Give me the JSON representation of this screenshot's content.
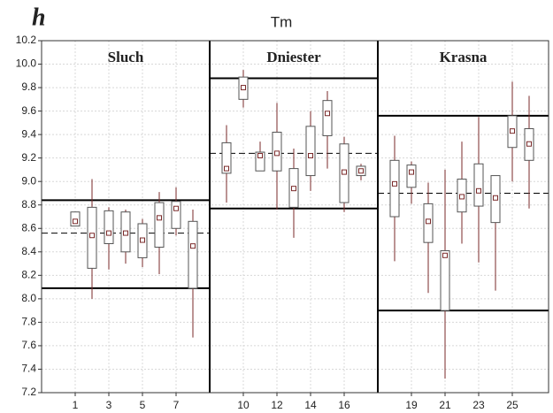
{
  "chart_data": {
    "type": "box",
    "panel_label": "h",
    "title": "Tm",
    "ylim": [
      7.2,
      10.2
    ],
    "yticks": [
      7.2,
      7.4,
      7.6,
      7.8,
      {
        "value": 8.0,
        "label": "8.0"
      },
      8.2,
      8.4,
      8.6,
      8.8,
      {
        "value": 9.0,
        "label": "9.0"
      },
      9.2,
      9.4,
      9.6,
      9.8,
      {
        "value": 10.0,
        "label": "10.0"
      },
      10.2
    ],
    "grid": true,
    "box_color": "#555555",
    "whisker_color": "#7a2a2a",
    "marker_color": "#7a2a2a",
    "groups": [
      {
        "name": "Sluch",
        "mean": 8.56,
        "upper": 8.84,
        "lower": 8.09,
        "categories": [
          "1",
          null,
          "3",
          null,
          "5",
          null,
          "7",
          null
        ],
        "whisker_low": [
          8.62,
          8.0,
          8.25,
          8.3,
          8.27,
          8.21,
          8.54,
          7.67
        ],
        "q1": [
          8.62,
          8.26,
          8.47,
          8.4,
          8.35,
          8.44,
          8.6,
          8.09
        ],
        "median": [
          8.66,
          8.54,
          8.56,
          8.56,
          8.5,
          8.69,
          8.77,
          8.45
        ],
        "q3": [
          8.74,
          8.78,
          8.75,
          8.74,
          8.64,
          8.82,
          8.83,
          8.66
        ],
        "whisker_high": [
          8.74,
          9.02,
          8.78,
          8.76,
          8.68,
          8.91,
          8.95,
          8.76
        ]
      },
      {
        "name": "Dniester",
        "mean": 9.24,
        "upper": 9.88,
        "lower": 8.77,
        "categories": [
          null,
          "10",
          null,
          "12",
          null,
          "14",
          null,
          "16",
          null
        ],
        "whisker_low": [
          8.82,
          9.63,
          9.09,
          8.76,
          8.52,
          8.92,
          9.11,
          8.74,
          9.01
        ],
        "q1": [
          9.07,
          9.7,
          9.09,
          9.09,
          8.78,
          9.05,
          9.39,
          8.82,
          9.05
        ],
        "median": [
          9.11,
          9.8,
          9.22,
          9.24,
          8.94,
          9.22,
          9.58,
          9.08,
          9.09
        ],
        "q3": [
          9.33,
          9.89,
          9.25,
          9.42,
          9.11,
          9.47,
          9.69,
          9.32,
          9.13
        ],
        "whisker_high": [
          9.48,
          9.95,
          9.34,
          9.67,
          9.28,
          9.6,
          9.77,
          9.38,
          9.15
        ]
      },
      {
        "name": "Krasna",
        "mean": 8.9,
        "upper": 9.56,
        "lower": 7.9,
        "categories": [
          null,
          "19",
          null,
          "21",
          null,
          "23",
          null,
          "25",
          null
        ],
        "whisker_low": [
          8.32,
          8.81,
          8.05,
          7.32,
          8.47,
          8.31,
          8.07,
          9.0,
          8.77
        ],
        "q1": [
          8.7,
          8.95,
          8.48,
          7.9,
          8.74,
          8.79,
          8.65,
          9.29,
          9.18
        ],
        "median": [
          8.98,
          9.08,
          8.66,
          8.37,
          8.87,
          8.92,
          8.86,
          9.43,
          9.32
        ],
        "q3": [
          9.18,
          9.14,
          8.81,
          8.41,
          9.02,
          9.15,
          9.05,
          9.56,
          9.45
        ],
        "whisker_high": [
          9.39,
          9.17,
          8.99,
          9.1,
          9.34,
          9.55,
          9.05,
          9.85,
          9.73
        ]
      }
    ]
  }
}
